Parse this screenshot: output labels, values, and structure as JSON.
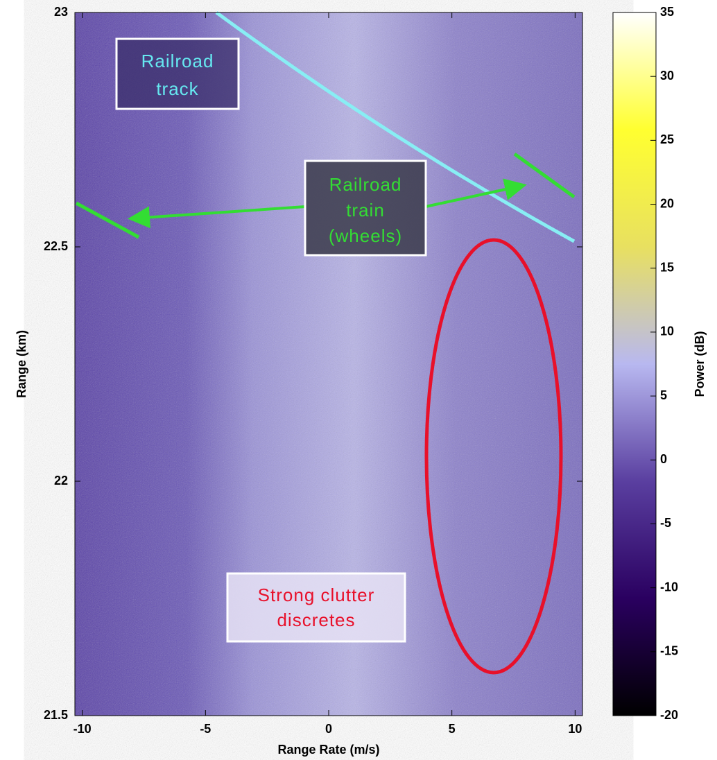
{
  "chart_data": {
    "type": "image",
    "x_label": "Range Rate (m/s)",
    "y_label": "Range (km)",
    "xlim": [
      -10.3,
      10.3
    ],
    "xticks": [
      -10,
      -5,
      0,
      5,
      10
    ],
    "ylim": [
      21.5,
      23
    ],
    "yticks": [
      21.5,
      22,
      22.5,
      23
    ],
    "colorbar": {
      "label": "Power (dB)",
      "lim": [
        -20,
        35
      ],
      "ticks": [
        -20,
        -15,
        -10,
        -5,
        0,
        5,
        10,
        15,
        20,
        25,
        30,
        35
      ],
      "colormap": [
        "#000000",
        "#2a0060",
        "#5a3fa0",
        "#b8b8f0",
        "#e8e060",
        "#ffff30",
        "#ffffff"
      ]
    },
    "annotations": [
      {
        "lines": [
          "Railroad",
          "track"
        ],
        "color": "#66e8f0"
      },
      {
        "lines": [
          "Railroad",
          "train",
          "(wheels)"
        ],
        "color": "#33dd33"
      },
      {
        "lines": [
          "Strong clutter",
          "discretes"
        ],
        "color": "#e8102a"
      }
    ]
  }
}
